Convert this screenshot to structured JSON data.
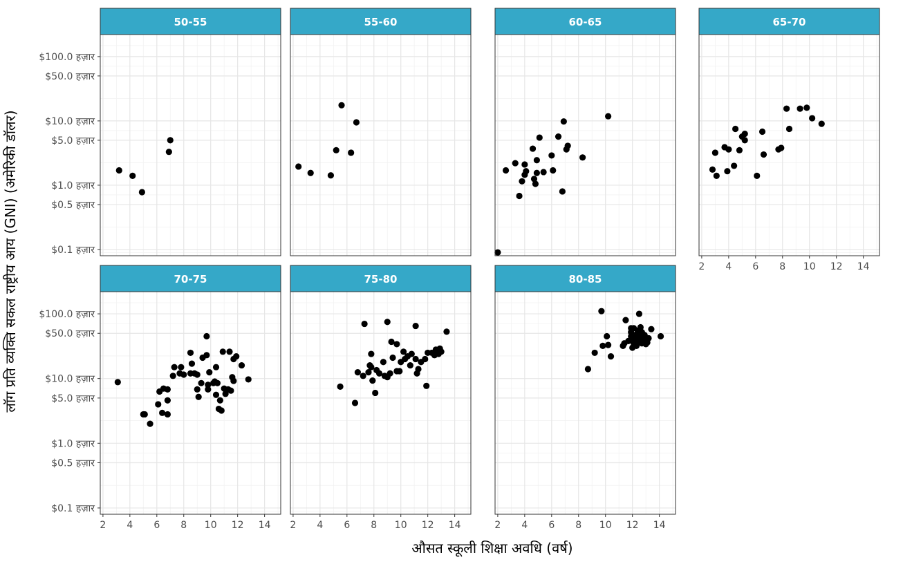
{
  "colors": {
    "strip_fill": "#35a8c8",
    "strip_border": "#333333",
    "panel_border": "#333333",
    "grid_major": "#e6e6e6",
    "grid_minor": "#f2f2f2",
    "point": "#000000",
    "tick_text": "#4d4d4d",
    "background": "#ffffff"
  },
  "chart_data": {
    "type": "scatter",
    "facet": "small-multiples by age group, 4 columns",
    "xlabel": "औसत स्कूली शिक्षा अवधि (वर्ष)",
    "ylabel": "लॉग प्रति व्यक्ति सकल राष्ट्रीय आय (GNI) (अमेरिकी डॉलर)",
    "xlim": [
      1.8,
      15.2
    ],
    "ylim": [
      80,
      220000
    ],
    "y_scale": "log",
    "grid": true,
    "x_ticks": [
      2,
      4,
      6,
      8,
      10,
      12,
      14
    ],
    "x_tick_labels": [
      "2",
      "4",
      "6",
      "8",
      "10",
      "12",
      "14"
    ],
    "y_ticks": [
      100,
      500,
      1000,
      5000,
      10000,
      50000,
      100000
    ],
    "y_tick_labels": [
      "$0.1 हज़ार",
      "$0.5 हज़ार",
      "$1.0 हज़ार",
      "$5.0 हज़ार",
      "$10.0 हज़ार",
      "$50.0 हज़ार",
      "$100.0 हज़ार"
    ],
    "panels": [
      {
        "label": "50-55",
        "points": [
          [
            3.2,
            1700
          ],
          [
            4.2,
            1400
          ],
          [
            4.9,
            780
          ],
          [
            6.9,
            3300
          ],
          [
            7.0,
            5000
          ]
        ]
      },
      {
        "label": "55-60",
        "points": [
          [
            2.4,
            1950
          ],
          [
            3.3,
            1550
          ],
          [
            4.8,
            1420
          ],
          [
            5.2,
            3500
          ],
          [
            5.6,
            17500
          ],
          [
            6.3,
            3200
          ],
          [
            6.7,
            9500
          ]
        ]
      },
      {
        "label": "60-65",
        "points": [
          [
            2.0,
            90
          ],
          [
            2.6,
            1700
          ],
          [
            3.3,
            2200
          ],
          [
            3.6,
            680
          ],
          [
            3.8,
            1150
          ],
          [
            4.0,
            1450
          ],
          [
            4.0,
            2100
          ],
          [
            4.1,
            1650
          ],
          [
            4.6,
            3700
          ],
          [
            4.7,
            1250
          ],
          [
            4.8,
            1050
          ],
          [
            4.9,
            2450
          ],
          [
            4.9,
            1550
          ],
          [
            5.1,
            5500
          ],
          [
            5.4,
            1600
          ],
          [
            6.0,
            2900
          ],
          [
            6.1,
            1700
          ],
          [
            6.5,
            5700
          ],
          [
            6.8,
            800
          ],
          [
            6.9,
            9800
          ],
          [
            7.1,
            3600
          ],
          [
            7.2,
            4100
          ],
          [
            8.3,
            2700
          ],
          [
            10.2,
            11800
          ]
        ]
      },
      {
        "label": "65-70",
        "points": [
          [
            2.8,
            1750
          ],
          [
            3.0,
            3200
          ],
          [
            3.1,
            1400
          ],
          [
            3.7,
            3900
          ],
          [
            3.9,
            1650
          ],
          [
            4.0,
            3600
          ],
          [
            4.4,
            2000
          ],
          [
            4.5,
            7500
          ],
          [
            4.8,
            3500
          ],
          [
            5.0,
            5700
          ],
          [
            5.2,
            6300
          ],
          [
            5.2,
            5000
          ],
          [
            6.1,
            1400
          ],
          [
            6.5,
            6800
          ],
          [
            6.6,
            3000
          ],
          [
            7.7,
            3600
          ],
          [
            7.9,
            3800
          ],
          [
            8.3,
            15500
          ],
          [
            8.5,
            7500
          ],
          [
            9.3,
            15500
          ],
          [
            9.8,
            16000
          ],
          [
            10.2,
            11000
          ],
          [
            10.9,
            9000
          ]
        ]
      },
      {
        "label": "70-75",
        "points": [
          [
            3.1,
            8800
          ],
          [
            5.0,
            2800
          ],
          [
            5.1,
            2800
          ],
          [
            5.5,
            2000
          ],
          [
            6.1,
            4000
          ],
          [
            6.2,
            6300
          ],
          [
            6.4,
            2950
          ],
          [
            6.5,
            7000
          ],
          [
            6.8,
            6800
          ],
          [
            6.8,
            4600
          ],
          [
            6.8,
            2800
          ],
          [
            7.2,
            11000
          ],
          [
            7.3,
            15000
          ],
          [
            7.7,
            12000
          ],
          [
            7.8,
            15000
          ],
          [
            8.0,
            11500
          ],
          [
            8.5,
            12000
          ],
          [
            8.5,
            25000
          ],
          [
            8.6,
            17000
          ],
          [
            8.8,
            12000
          ],
          [
            9.0,
            11500
          ],
          [
            9.0,
            6800
          ],
          [
            9.1,
            5200
          ],
          [
            9.3,
            8500
          ],
          [
            9.4,
            21000
          ],
          [
            9.7,
            23000
          ],
          [
            9.7,
            45000
          ],
          [
            9.8,
            6800
          ],
          [
            9.8,
            8000
          ],
          [
            9.9,
            12500
          ],
          [
            10.2,
            8500
          ],
          [
            10.3,
            9000
          ],
          [
            10.4,
            15000
          ],
          [
            10.4,
            5600
          ],
          [
            10.5,
            8500
          ],
          [
            10.6,
            3400
          ],
          [
            10.7,
            4600
          ],
          [
            10.8,
            3200
          ],
          [
            10.9,
            26000
          ],
          [
            11.0,
            7000
          ],
          [
            11.1,
            5800
          ],
          [
            11.3,
            6800
          ],
          [
            11.4,
            26000
          ],
          [
            11.5,
            6500
          ],
          [
            11.6,
            10500
          ],
          [
            11.7,
            9200
          ],
          [
            11.7,
            20000
          ],
          [
            11.9,
            22000
          ],
          [
            12.3,
            16000
          ],
          [
            12.8,
            9700
          ]
        ]
      },
      {
        "label": "75-80",
        "points": [
          [
            5.5,
            7500
          ],
          [
            6.6,
            4200
          ],
          [
            6.8,
            12500
          ],
          [
            7.2,
            11000
          ],
          [
            7.3,
            70000
          ],
          [
            7.6,
            12500
          ],
          [
            7.7,
            16000
          ],
          [
            7.8,
            24000
          ],
          [
            7.8,
            15000
          ],
          [
            7.9,
            9300
          ],
          [
            8.1,
            6000
          ],
          [
            8.2,
            13500
          ],
          [
            8.4,
            12000
          ],
          [
            8.7,
            18000
          ],
          [
            8.8,
            11000
          ],
          [
            9.0,
            10500
          ],
          [
            9.0,
            75000
          ],
          [
            9.2,
            12000
          ],
          [
            9.3,
            37000
          ],
          [
            9.4,
            21000
          ],
          [
            9.7,
            34000
          ],
          [
            9.7,
            13000
          ],
          [
            9.9,
            13000
          ],
          [
            10.0,
            18000
          ],
          [
            10.2,
            26000
          ],
          [
            10.3,
            20000
          ],
          [
            10.5,
            22000
          ],
          [
            10.7,
            16000
          ],
          [
            10.8,
            24000
          ],
          [
            11.1,
            65000
          ],
          [
            11.1,
            20000
          ],
          [
            11.2,
            12000
          ],
          [
            11.3,
            14000
          ],
          [
            11.5,
            18000
          ],
          [
            11.8,
            20000
          ],
          [
            11.9,
            7700
          ],
          [
            12.0,
            25000
          ],
          [
            12.3,
            25000
          ],
          [
            12.5,
            23000
          ],
          [
            12.6,
            28000
          ],
          [
            12.7,
            27000
          ],
          [
            12.8,
            24000
          ],
          [
            12.9,
            29000
          ],
          [
            13.0,
            26000
          ],
          [
            13.4,
            53000
          ]
        ]
      },
      {
        "label": "80-85",
        "points": [
          [
            8.7,
            14000
          ],
          [
            9.2,
            25000
          ],
          [
            9.7,
            110000
          ],
          [
            9.8,
            32000
          ],
          [
            10.1,
            45000
          ],
          [
            10.2,
            33000
          ],
          [
            10.4,
            22000
          ],
          [
            11.3,
            32000
          ],
          [
            11.4,
            35000
          ],
          [
            11.5,
            80000
          ],
          [
            11.7,
            38000
          ],
          [
            11.9,
            45000
          ],
          [
            11.9,
            52000
          ],
          [
            11.9,
            60000
          ],
          [
            12.0,
            30000
          ],
          [
            12.0,
            38000
          ],
          [
            12.1,
            35000
          ],
          [
            12.1,
            60000
          ],
          [
            12.2,
            42000
          ],
          [
            12.3,
            32000
          ],
          [
            12.3,
            48000
          ],
          [
            12.4,
            43000
          ],
          [
            12.4,
            40000
          ],
          [
            12.4,
            55000
          ],
          [
            12.5,
            100000
          ],
          [
            12.5,
            36000
          ],
          [
            12.6,
            62000
          ],
          [
            12.6,
            45000
          ],
          [
            12.7,
            35000
          ],
          [
            12.7,
            52000
          ],
          [
            12.8,
            40000
          ],
          [
            12.8,
            38000
          ],
          [
            12.9,
            47000
          ],
          [
            13.0,
            34000
          ],
          [
            13.1,
            36000
          ],
          [
            13.2,
            42000
          ],
          [
            13.4,
            58000
          ],
          [
            14.1,
            45000
          ]
        ]
      }
    ]
  }
}
